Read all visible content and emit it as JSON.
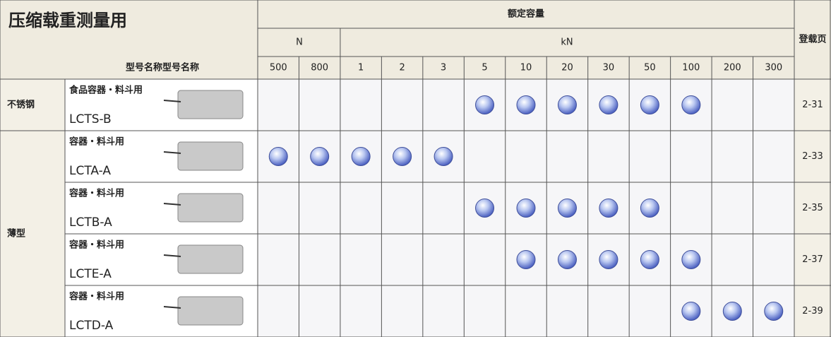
{
  "header": {
    "title": "压缩载重测量用",
    "rated_capacity": "额定容量",
    "unit_n": "N",
    "unit_kn": "kN",
    "model_label": "型号名称型号名称",
    "page_label": "登载页",
    "capacities": [
      "500",
      "800",
      "1",
      "2",
      "3",
      "5",
      "10",
      "20",
      "30",
      "50",
      "100",
      "200",
      "300"
    ]
  },
  "groups": [
    {
      "label": "不锈钢",
      "rows": [
        {
          "use": "食品容器・料斗用",
          "model": "LCTS-B",
          "ratings": [
            false,
            false,
            false,
            false,
            false,
            true,
            true,
            true,
            true,
            true,
            true,
            false,
            false
          ],
          "page": "2-31"
        }
      ]
    },
    {
      "label": "薄型",
      "rows": [
        {
          "use": "容器・料斗用",
          "model": "LCTA-A",
          "ratings": [
            true,
            true,
            true,
            true,
            true,
            false,
            false,
            false,
            false,
            false,
            false,
            false,
            false
          ],
          "page": "2-33"
        },
        {
          "use": "容器・料斗用",
          "model": "LCTB-A",
          "ratings": [
            false,
            false,
            false,
            false,
            false,
            true,
            true,
            true,
            true,
            true,
            false,
            false,
            false
          ],
          "page": "2-35"
        },
        {
          "use": "容器・料斗用",
          "model": "LCTE-A",
          "ratings": [
            false,
            false,
            false,
            false,
            false,
            false,
            true,
            true,
            true,
            true,
            true,
            false,
            false
          ],
          "page": "2-37"
        },
        {
          "use": "容器・料斗用",
          "model": "LCTD-A",
          "ratings": [
            false,
            false,
            false,
            false,
            false,
            false,
            false,
            false,
            false,
            false,
            true,
            true,
            true
          ],
          "page": "2-39"
        }
      ]
    }
  ]
}
